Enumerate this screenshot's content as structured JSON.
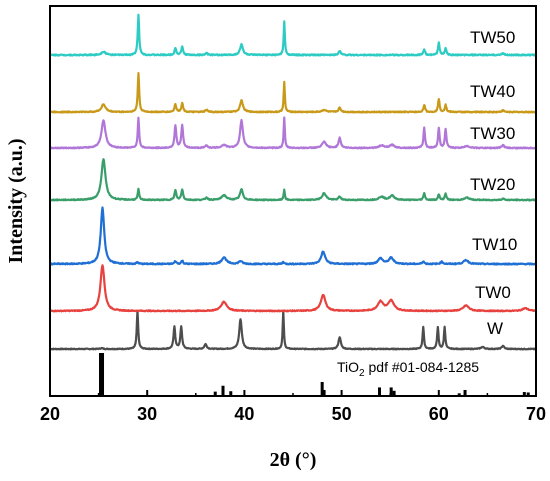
{
  "chart_data": {
    "type": "line",
    "xlabel": "2θ (°)",
    "ylabel": "Intensity (a.u.)",
    "xlim": [
      20,
      70
    ],
    "xticks": [
      "20",
      "30",
      "40",
      "50",
      "60",
      "70"
    ],
    "y_ticks_shown": false,
    "reference": {
      "label_main": "TiO",
      "label_sub": "2",
      "label_rest": " pdf #01-084-1285",
      "color": "#000000",
      "peaks": [
        {
          "x": 25.3,
          "h": 1.0
        },
        {
          "x": 37.0,
          "h": 0.08
        },
        {
          "x": 37.8,
          "h": 0.22
        },
        {
          "x": 38.6,
          "h": 0.09
        },
        {
          "x": 48.0,
          "h": 0.31
        },
        {
          "x": 48.2,
          "h": 0.12
        },
        {
          "x": 53.9,
          "h": 0.18
        },
        {
          "x": 55.1,
          "h": 0.18
        },
        {
          "x": 55.4,
          "h": 0.1
        },
        {
          "x": 62.1,
          "h": 0.04
        },
        {
          "x": 62.7,
          "h": 0.12
        },
        {
          "x": 68.8,
          "h": 0.07
        },
        {
          "x": 69.2,
          "h": 0.06
        }
      ]
    },
    "series": [
      {
        "name": "W",
        "color": "#4d4d4d",
        "peaks": [
          {
            "x": 25.3,
            "h": 0.02,
            "w": 0.25
          },
          {
            "x": 29.0,
            "h": 0.95,
            "w": 0.12
          },
          {
            "x": 32.8,
            "h": 0.55,
            "w": 0.15
          },
          {
            "x": 33.5,
            "h": 0.55,
            "w": 0.15
          },
          {
            "x": 36.0,
            "h": 0.12,
            "w": 0.2
          },
          {
            "x": 39.6,
            "h": 0.75,
            "w": 0.22
          },
          {
            "x": 44.0,
            "h": 0.95,
            "w": 0.1
          },
          {
            "x": 49.8,
            "h": 0.3,
            "w": 0.2
          },
          {
            "x": 58.4,
            "h": 0.55,
            "w": 0.12
          },
          {
            "x": 59.9,
            "h": 0.55,
            "w": 0.12
          },
          {
            "x": 60.6,
            "h": 0.55,
            "w": 0.12
          },
          {
            "x": 64.5,
            "h": 0.05,
            "w": 0.3
          },
          {
            "x": 66.6,
            "h": 0.08,
            "w": 0.2
          }
        ]
      },
      {
        "name": "TW0",
        "color": "#e8423f",
        "peaks": [
          {
            "x": 25.4,
            "h": 1.0,
            "w": 0.35
          },
          {
            "x": 37.9,
            "h": 0.2,
            "w": 0.5
          },
          {
            "x": 48.1,
            "h": 0.35,
            "w": 0.4
          },
          {
            "x": 54.0,
            "h": 0.2,
            "w": 0.5
          },
          {
            "x": 55.1,
            "h": 0.22,
            "w": 0.5
          },
          {
            "x": 62.8,
            "h": 0.12,
            "w": 0.5
          },
          {
            "x": 68.9,
            "h": 0.06,
            "w": 0.5
          }
        ]
      },
      {
        "name": "TW10",
        "color": "#1f6fd4",
        "peaks": [
          {
            "x": 25.4,
            "h": 1.0,
            "w": 0.3
          },
          {
            "x": 29.0,
            "h": 0.03,
            "w": 0.15
          },
          {
            "x": 32.9,
            "h": 0.05,
            "w": 0.15
          },
          {
            "x": 33.6,
            "h": 0.06,
            "w": 0.15
          },
          {
            "x": 37.9,
            "h": 0.12,
            "w": 0.4
          },
          {
            "x": 39.6,
            "h": 0.05,
            "w": 0.3
          },
          {
            "x": 44.0,
            "h": 0.04,
            "w": 0.12
          },
          {
            "x": 48.1,
            "h": 0.22,
            "w": 0.35
          },
          {
            "x": 54.0,
            "h": 0.1,
            "w": 0.4
          },
          {
            "x": 55.1,
            "h": 0.11,
            "w": 0.4
          },
          {
            "x": 58.4,
            "h": 0.05,
            "w": 0.15
          },
          {
            "x": 60.3,
            "h": 0.04,
            "w": 0.2
          },
          {
            "x": 62.8,
            "h": 0.07,
            "w": 0.4
          }
        ]
      },
      {
        "name": "TW20",
        "color": "#3a9e6a",
        "peaks": [
          {
            "x": 25.5,
            "h": 0.85,
            "w": 0.35
          },
          {
            "x": 29.1,
            "h": 0.22,
            "w": 0.12
          },
          {
            "x": 32.9,
            "h": 0.2,
            "w": 0.15
          },
          {
            "x": 33.6,
            "h": 0.22,
            "w": 0.15
          },
          {
            "x": 36.1,
            "h": 0.05,
            "w": 0.2
          },
          {
            "x": 37.9,
            "h": 0.1,
            "w": 0.4
          },
          {
            "x": 39.7,
            "h": 0.22,
            "w": 0.25
          },
          {
            "x": 44.1,
            "h": 0.22,
            "w": 0.1
          },
          {
            "x": 48.2,
            "h": 0.14,
            "w": 0.35
          },
          {
            "x": 49.8,
            "h": 0.07,
            "w": 0.2
          },
          {
            "x": 54.1,
            "h": 0.07,
            "w": 0.4
          },
          {
            "x": 55.2,
            "h": 0.09,
            "w": 0.4
          },
          {
            "x": 58.5,
            "h": 0.15,
            "w": 0.13
          },
          {
            "x": 60.0,
            "h": 0.12,
            "w": 0.13
          },
          {
            "x": 60.7,
            "h": 0.14,
            "w": 0.13
          },
          {
            "x": 62.9,
            "h": 0.05,
            "w": 0.4
          },
          {
            "x": 66.6,
            "h": 0.03,
            "w": 0.2
          }
        ]
      },
      {
        "name": "TW30",
        "color": "#b077d8",
        "peaks": [
          {
            "x": 25.5,
            "h": 0.55,
            "w": 0.35
          },
          {
            "x": 29.1,
            "h": 0.6,
            "w": 0.12
          },
          {
            "x": 32.9,
            "h": 0.45,
            "w": 0.15
          },
          {
            "x": 33.6,
            "h": 0.45,
            "w": 0.15
          },
          {
            "x": 36.1,
            "h": 0.05,
            "w": 0.2
          },
          {
            "x": 37.9,
            "h": 0.06,
            "w": 0.4
          },
          {
            "x": 39.7,
            "h": 0.55,
            "w": 0.25
          },
          {
            "x": 44.1,
            "h": 0.6,
            "w": 0.1
          },
          {
            "x": 48.2,
            "h": 0.12,
            "w": 0.35
          },
          {
            "x": 49.8,
            "h": 0.2,
            "w": 0.2
          },
          {
            "x": 54.1,
            "h": 0.05,
            "w": 0.4
          },
          {
            "x": 55.2,
            "h": 0.06,
            "w": 0.4
          },
          {
            "x": 58.5,
            "h": 0.4,
            "w": 0.13
          },
          {
            "x": 60.0,
            "h": 0.4,
            "w": 0.13
          },
          {
            "x": 60.7,
            "h": 0.38,
            "w": 0.13
          },
          {
            "x": 62.9,
            "h": 0.04,
            "w": 0.4
          },
          {
            "x": 66.6,
            "h": 0.06,
            "w": 0.2
          }
        ]
      },
      {
        "name": "TW40",
        "color": "#c99a1a",
        "peaks": [
          {
            "x": 25.5,
            "h": 0.15,
            "w": 0.35
          },
          {
            "x": 29.1,
            "h": 0.75,
            "w": 0.12
          },
          {
            "x": 32.9,
            "h": 0.15,
            "w": 0.15
          },
          {
            "x": 33.6,
            "h": 0.17,
            "w": 0.15
          },
          {
            "x": 36.1,
            "h": 0.04,
            "w": 0.2
          },
          {
            "x": 39.7,
            "h": 0.22,
            "w": 0.25
          },
          {
            "x": 44.1,
            "h": 0.58,
            "w": 0.1
          },
          {
            "x": 48.2,
            "h": 0.04,
            "w": 0.35
          },
          {
            "x": 49.8,
            "h": 0.08,
            "w": 0.2
          },
          {
            "x": 58.5,
            "h": 0.14,
            "w": 0.13
          },
          {
            "x": 60.0,
            "h": 0.25,
            "w": 0.13
          },
          {
            "x": 60.7,
            "h": 0.14,
            "w": 0.13
          },
          {
            "x": 66.6,
            "h": 0.03,
            "w": 0.2
          }
        ]
      },
      {
        "name": "TW50",
        "color": "#2ccbc4",
        "peaks": [
          {
            "x": 25.5,
            "h": 0.06,
            "w": 0.35
          },
          {
            "x": 29.1,
            "h": 0.7,
            "w": 0.12
          },
          {
            "x": 32.9,
            "h": 0.12,
            "w": 0.15
          },
          {
            "x": 33.6,
            "h": 0.14,
            "w": 0.15
          },
          {
            "x": 36.1,
            "h": 0.03,
            "w": 0.2
          },
          {
            "x": 39.7,
            "h": 0.18,
            "w": 0.25
          },
          {
            "x": 44.1,
            "h": 0.58,
            "w": 0.1
          },
          {
            "x": 49.8,
            "h": 0.07,
            "w": 0.2
          },
          {
            "x": 58.5,
            "h": 0.1,
            "w": 0.13
          },
          {
            "x": 60.0,
            "h": 0.22,
            "w": 0.13
          },
          {
            "x": 60.7,
            "h": 0.12,
            "w": 0.13
          },
          {
            "x": 66.6,
            "h": 0.03,
            "w": 0.2
          }
        ]
      }
    ]
  }
}
